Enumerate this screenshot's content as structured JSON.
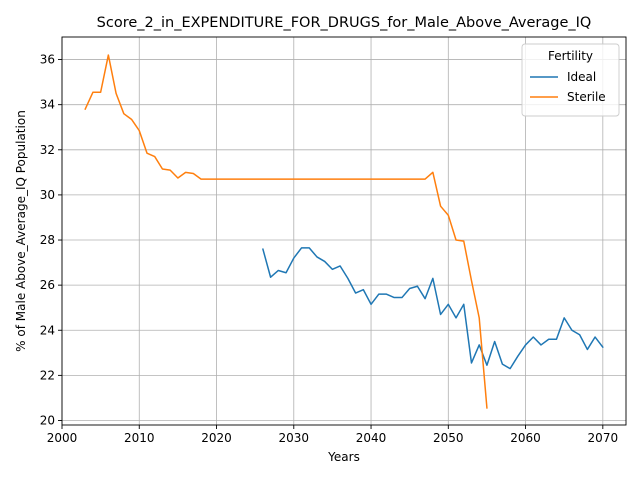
{
  "chart_data": {
    "type": "line",
    "title": "Score_2_in_EXPENDITURE_FOR_DRUGS_for_Male_Above_Average_IQ",
    "xlabel": "Years",
    "ylabel": "% of Male Above_Average_IQ Population",
    "xlim": [
      2000,
      2073
    ],
    "ylim": [
      19.8,
      37.0
    ],
    "xticks": [
      2000,
      2010,
      2020,
      2030,
      2040,
      2050,
      2060,
      2070
    ],
    "yticks": [
      20,
      22,
      24,
      26,
      28,
      30,
      32,
      34,
      36
    ],
    "grid": true,
    "legend": {
      "title": "Fertility",
      "placement": "upper right"
    },
    "series": [
      {
        "name": "Ideal",
        "color": "#1f77b4",
        "x": [
          2026,
          2027,
          2028,
          2029,
          2030,
          2031,
          2032,
          2033,
          2034,
          2035,
          2036,
          2037,
          2038,
          2039,
          2040,
          2041,
          2042,
          2043,
          2044,
          2045,
          2046,
          2047,
          2048,
          2049,
          2050,
          2051,
          2052,
          2053,
          2054,
          2055,
          2056,
          2057,
          2058,
          2059,
          2060,
          2061,
          2062,
          2063,
          2064,
          2065,
          2066,
          2067,
          2068,
          2069,
          2070
        ],
        "y": [
          27.6,
          26.35,
          26.65,
          26.55,
          27.2,
          27.65,
          27.65,
          27.25,
          27.05,
          26.7,
          26.85,
          26.3,
          25.65,
          25.8,
          25.15,
          25.6,
          25.6,
          25.45,
          25.45,
          25.85,
          25.95,
          25.4,
          26.3,
          24.7,
          25.15,
          24.55,
          25.15,
          22.55,
          23.35,
          22.45,
          23.5,
          22.5,
          22.3,
          22.85,
          23.35,
          23.7,
          23.35,
          23.6,
          23.6,
          24.55,
          24.0,
          23.8,
          23.15,
          23.7,
          23.25
        ]
      },
      {
        "name": "Sterile",
        "color": "#ff7f0e",
        "x": [
          2003,
          2004,
          2005,
          2006,
          2007,
          2008,
          2009,
          2010,
          2011,
          2012,
          2013,
          2014,
          2015,
          2016,
          2017,
          2018,
          2019,
          2020,
          2021,
          2022,
          2023,
          2024,
          2025,
          2026,
          2027,
          2028,
          2029,
          2030,
          2031,
          2032,
          2033,
          2034,
          2035,
          2036,
          2037,
          2038,
          2039,
          2040,
          2041,
          2042,
          2043,
          2044,
          2045,
          2046,
          2047,
          2048,
          2049,
          2050,
          2051,
          2052,
          2053,
          2054,
          2055
        ],
        "y": [
          33.8,
          34.55,
          34.55,
          36.2,
          34.5,
          33.6,
          33.35,
          32.85,
          31.85,
          31.7,
          31.15,
          31.1,
          30.75,
          31.0,
          30.95,
          30.7,
          30.7,
          30.7,
          30.7,
          30.7,
          30.7,
          30.7,
          30.7,
          30.7,
          30.7,
          30.7,
          30.7,
          30.7,
          30.7,
          30.7,
          30.7,
          30.7,
          30.7,
          30.7,
          30.7,
          30.7,
          30.7,
          30.7,
          30.7,
          30.7,
          30.7,
          30.7,
          30.7,
          30.7,
          30.7,
          31.0,
          29.5,
          29.1,
          28.0,
          27.95,
          26.2,
          24.55,
          20.55
        ]
      }
    ]
  }
}
